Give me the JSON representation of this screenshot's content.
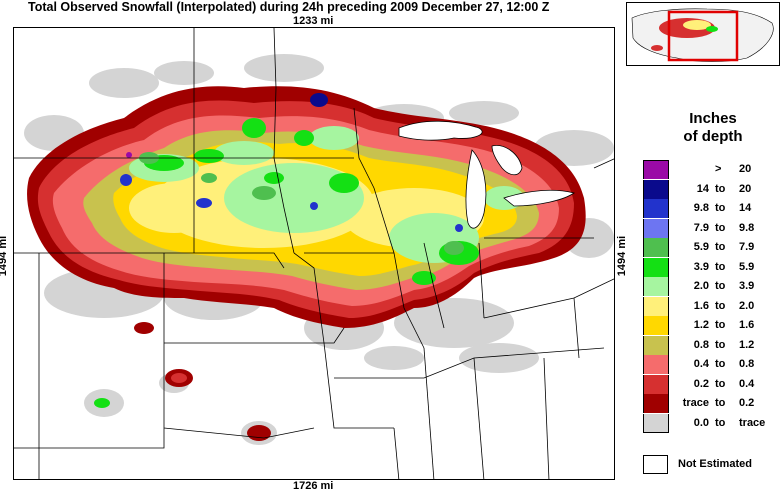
{
  "title": "Total Observed Snowfall (Interpolated) during 24h preceding 2009 December 27, 12:00 Z",
  "dimensions": {
    "top": "1233 mi",
    "bottom": "1726 mi",
    "left": "1494 mi",
    "right": "1494 mi"
  },
  "legend": {
    "title_line1": "Inches",
    "title_line2": "of depth",
    "entries": [
      {
        "lo": "",
        "to": ">",
        "hi": "20",
        "color": "#9a0aa6"
      },
      {
        "lo": "14",
        "to": "to",
        "hi": "20",
        "color": "#0a0a8c"
      },
      {
        "lo": "9.8",
        "to": "to",
        "hi": "14",
        "color": "#2233cc"
      },
      {
        "lo": "7.9",
        "to": "to",
        "hi": "9.8",
        "color": "#6d75f2"
      },
      {
        "lo": "5.9",
        "to": "to",
        "hi": "7.9",
        "color": "#4fbf4f"
      },
      {
        "lo": "3.9",
        "to": "to",
        "hi": "5.9",
        "color": "#14e014"
      },
      {
        "lo": "2.0",
        "to": "to",
        "hi": "3.9",
        "color": "#a6f5a0"
      },
      {
        "lo": "1.6",
        "to": "to",
        "hi": "2.0",
        "color": "#fff07a"
      },
      {
        "lo": "1.2",
        "to": "to",
        "hi": "1.6",
        "color": "#ffd800"
      },
      {
        "lo": "0.8",
        "to": "to",
        "hi": "1.2",
        "color": "#c8c24e"
      },
      {
        "lo": "0.4",
        "to": "to",
        "hi": "0.8",
        "color": "#f56c6c"
      },
      {
        "lo": "0.2",
        "to": "to",
        "hi": "0.4",
        "color": "#d63030"
      },
      {
        "lo": "trace",
        "to": "to",
        "hi": "0.2",
        "color": "#a00000"
      },
      {
        "lo": "0.0",
        "to": "to",
        "hi": "trace",
        "color": "#d4d4d4"
      }
    ],
    "not_estimated": "Not Estimated"
  },
  "colors": {
    "gray": "#d4d4d4",
    "trace": "#a00000",
    "low": "#d63030",
    "pink": "#f56c6c",
    "olive": "#c8c24e",
    "yellow": "#ffd800",
    "lightyellow": "#fff07a",
    "lightgreen": "#a6f5a0",
    "green": "#14e014",
    "midgreen": "#4fbf4f",
    "blue": "#2233cc",
    "darkblue": "#0a0a8c",
    "purple": "#9a0aa6",
    "inset_box": "#e00000"
  }
}
